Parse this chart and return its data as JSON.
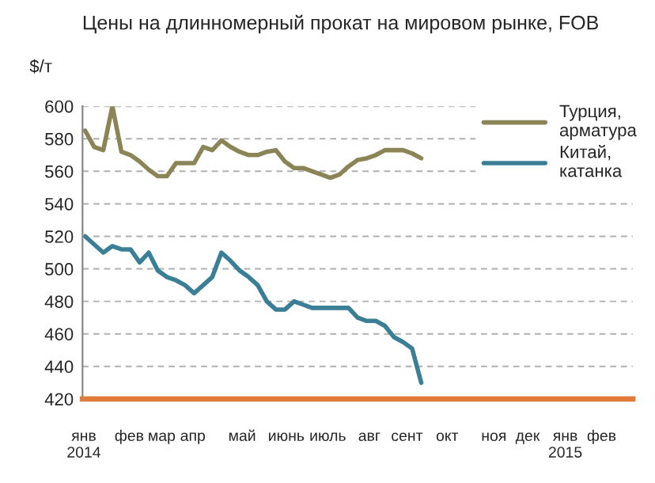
{
  "chart_data": {
    "type": "line",
    "title": "Цены на длинномерный прокат на мировом рынке, FOB",
    "ylabel": "$/т",
    "x": [
      "2014-01-03",
      "2014-01-10",
      "2014-01-17",
      "2014-01-24",
      "2014-01-31",
      "2014-02-07",
      "2014-02-14",
      "2014-02-21",
      "2014-02-28",
      "2014-03-07",
      "2014-03-14",
      "2014-03-21",
      "2014-03-28",
      "2014-04-04",
      "2014-04-11",
      "2014-04-18",
      "2014-04-25",
      "2014-05-02",
      "2014-05-09",
      "2014-05-16",
      "2014-05-23",
      "2014-05-30",
      "2014-06-06",
      "2014-06-13",
      "2014-06-20",
      "2014-06-27",
      "2014-07-04",
      "2014-07-11",
      "2014-07-18",
      "2014-07-25",
      "2014-08-01",
      "2014-08-08",
      "2014-08-15",
      "2014-08-22",
      "2014-08-29",
      "2014-09-05",
      "2014-09-12",
      "2014-09-19"
    ],
    "series": [
      {
        "name": "Турция,\nарматура",
        "color": "#8b8456",
        "values": [
          585,
          575,
          573,
          600,
          572,
          570,
          566,
          561,
          557,
          557,
          565,
          565,
          565,
          575,
          573,
          579,
          575,
          572,
          570,
          570,
          572,
          573,
          566,
          562,
          562,
          560,
          558,
          556,
          558,
          563,
          567,
          568,
          570,
          573,
          573,
          573,
          571,
          568
        ]
      },
      {
        "name": "Китай,\nкатанка",
        "color": "#3a7f96",
        "values": [
          520,
          515,
          510,
          514,
          512,
          512,
          504,
          510,
          499,
          495,
          493,
          490,
          485,
          490,
          495,
          510,
          505,
          499,
          495,
          490,
          480,
          475,
          475,
          480,
          478,
          476,
          476,
          476,
          476,
          476,
          470,
          468,
          468,
          465,
          458,
          455,
          451,
          430
        ]
      }
    ],
    "xlim": [
      "2014-01-01",
      "2015-03-01"
    ],
    "xticks": [
      {
        "value": "2014-01-02",
        "label": "янв\n2014"
      },
      {
        "value": "2014-02-06",
        "label": "фев"
      },
      {
        "value": "2014-03-03",
        "label": "мар"
      },
      {
        "value": "2014-03-27",
        "label": "апр"
      },
      {
        "value": "2014-05-04",
        "label": "май"
      },
      {
        "value": "2014-06-07",
        "label": "июнь"
      },
      {
        "value": "2014-07-09",
        "label": "июль"
      },
      {
        "value": "2014-08-10",
        "label": "авг"
      },
      {
        "value": "2014-09-08",
        "label": "сент"
      },
      {
        "value": "2014-10-09",
        "label": "окт"
      },
      {
        "value": "2014-11-14",
        "label": "ноя"
      },
      {
        "value": "2014-12-10",
        "label": "дек"
      },
      {
        "value": "2015-01-08",
        "label": "янв\n2015"
      },
      {
        "value": "2015-02-05",
        "label": "фев"
      }
    ],
    "ylim": [
      420,
      600
    ],
    "yticks": [
      420,
      440,
      460,
      480,
      500,
      520,
      540,
      560,
      580,
      600
    ],
    "grid": "y",
    "legend": "top right",
    "marker": "none",
    "line_style": "solid"
  }
}
